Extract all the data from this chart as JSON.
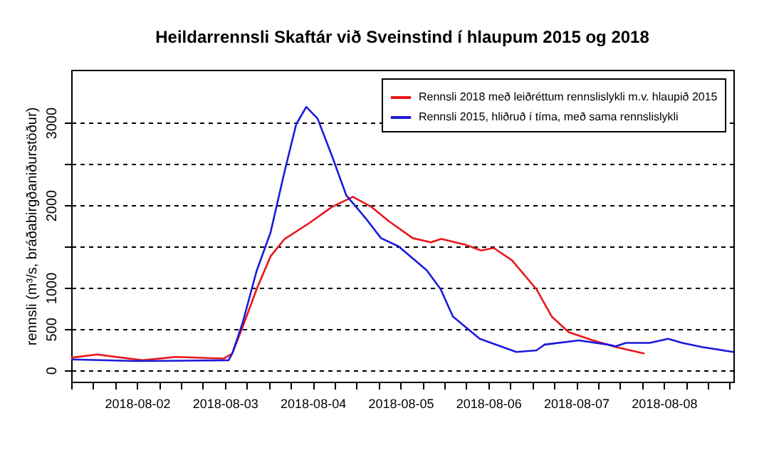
{
  "chart_data": {
    "type": "line",
    "title": "Heildarrennsli Skaftár við Sveinstind í hlaupum 2015 og 2018",
    "ylabel": "rennsli (m³/s, bráðabirgðaniðurstöður)",
    "xlim": [
      "2018-08-01T06:00",
      "2018-08-08T19:00"
    ],
    "xticks": [
      {
        "value": "2018-08-01T06:00",
        "label": null
      },
      {
        "value": "2018-08-01T12:00",
        "label": null
      },
      {
        "value": "2018-08-01T18:00",
        "label": null
      },
      {
        "value": "2018-08-02",
        "label": "2018-08-02"
      },
      {
        "value": "2018-08-02T06:00",
        "label": null
      },
      {
        "value": "2018-08-02T12:00",
        "label": null
      },
      {
        "value": "2018-08-02T18:00",
        "label": null
      },
      {
        "value": "2018-08-03",
        "label": "2018-08-03"
      },
      {
        "value": "2018-08-03T06:00",
        "label": null
      },
      {
        "value": "2018-08-03T12:00",
        "label": null
      },
      {
        "value": "2018-08-03T18:00",
        "label": null
      },
      {
        "value": "2018-08-04",
        "label": "2018-08-04"
      },
      {
        "value": "2018-08-04T06:00",
        "label": null
      },
      {
        "value": "2018-08-04T12:00",
        "label": null
      },
      {
        "value": "2018-08-04T18:00",
        "label": null
      },
      {
        "value": "2018-08-05",
        "label": "2018-08-05"
      },
      {
        "value": "2018-08-05T06:00",
        "label": null
      },
      {
        "value": "2018-08-05T12:00",
        "label": null
      },
      {
        "value": "2018-08-05T18:00",
        "label": null
      },
      {
        "value": "2018-08-06",
        "label": "2018-08-06"
      },
      {
        "value": "2018-08-06T06:00",
        "label": null
      },
      {
        "value": "2018-08-06T12:00",
        "label": null
      },
      {
        "value": "2018-08-06T18:00",
        "label": null
      },
      {
        "value": "2018-08-07",
        "label": "2018-08-07"
      },
      {
        "value": "2018-08-07T06:00",
        "label": null
      },
      {
        "value": "2018-08-07T12:00",
        "label": null
      },
      {
        "value": "2018-08-07T18:00",
        "label": null
      },
      {
        "value": "2018-08-08",
        "label": "2018-08-08"
      },
      {
        "value": "2018-08-08T06:00",
        "label": null
      },
      {
        "value": "2018-08-08T12:00",
        "label": null
      },
      {
        "value": "2018-08-08T18:00",
        "label": null
      }
    ],
    "ylim": [
      -140,
      3640
    ],
    "yticks": [
      0,
      500,
      1000,
      {
        "value": 1500,
        "label": null
      },
      2000,
      {
        "value": 2500,
        "label": null
      },
      3000
    ],
    "grid": "y",
    "legend": "top right",
    "line_style": "solid",
    "marker": "none",
    "series": [
      {
        "name": "Rennsli 2018 með leiðréttum rennslislykli m.v. hlaupið 2015",
        "color": "#e8171c",
        "x": [
          "2018-08-01T06:00",
          "2018-08-01T13:00",
          "2018-08-02T01:30",
          "2018-08-02T10:30",
          "2018-08-02T23:40",
          "2018-08-03T02:00",
          "2018-08-03T04:50",
          "2018-08-03T08:40",
          "2018-08-03T12:30",
          "2018-08-03T16:20",
          "2018-08-03T23:00",
          "2018-08-04T05:20",
          "2018-08-04T11:00",
          "2018-08-04T16:00",
          "2018-08-04T20:40",
          "2018-08-05T03:20",
          "2018-08-05T08:20",
          "2018-08-05T11:10",
          "2018-08-05T17:45",
          "2018-08-05T22:00",
          "2018-08-06T01:30",
          "2018-08-06T06:30",
          "2018-08-06T13:10",
          "2018-08-06T17:20",
          "2018-08-06T22:00",
          "2018-08-07T04:40",
          "2018-08-07T10:50",
          "2018-08-07T18:40"
        ],
        "values": [
          150,
          190,
          120,
          160,
          140,
          200,
          520,
          980,
          1380,
          1590,
          1780,
          1980,
          2100,
          1980,
          1810,
          1600,
          1550,
          1590,
          1520,
          1450,
          1480,
          1330,
          980,
          650,
          460,
          360,
          280,
          200
        ]
      },
      {
        "name": "Rennsli 2015, hliðruð í tíma, með sama rennslislykli",
        "color": "#1a1adb",
        "x": [
          "2018-08-01T06:00",
          "2018-08-02T00:00",
          "2018-08-03T01:00",
          "2018-08-03T02:00",
          "2018-08-03T04:50",
          "2018-08-03T08:40",
          "2018-08-03T12:30",
          "2018-08-03T16:20",
          "2018-08-03T19:30",
          "2018-08-03T22:15",
          "2018-08-04T01:20",
          "2018-08-04T05:20",
          "2018-08-04T09:10",
          "2018-08-04T14:30",
          "2018-08-04T18:40",
          "2018-08-04T23:30",
          "2018-08-05T07:10",
          "2018-08-05T11:00",
          "2018-08-05T14:20",
          "2018-08-05T21:40",
          "2018-08-06T07:40",
          "2018-08-06T13:10",
          "2018-08-06T15:25",
          "2018-08-07T00:45",
          "2018-08-07T08:40",
          "2018-08-07T10:50",
          "2018-08-07T13:40",
          "2018-08-07T20:10",
          "2018-08-08T01:10",
          "2018-08-08T05:00",
          "2018-08-08T10:20",
          "2018-08-08T19:00"
        ],
        "values": [
          130,
          110,
          120,
          200,
          570,
          1200,
          1670,
          2410,
          2980,
          3190,
          3050,
          2590,
          2120,
          1840,
          1600,
          1500,
          1210,
          980,
          650,
          380,
          220,
          240,
          310,
          360,
          310,
          290,
          330,
          330,
          380,
          330,
          280,
          220
        ]
      }
    ]
  }
}
